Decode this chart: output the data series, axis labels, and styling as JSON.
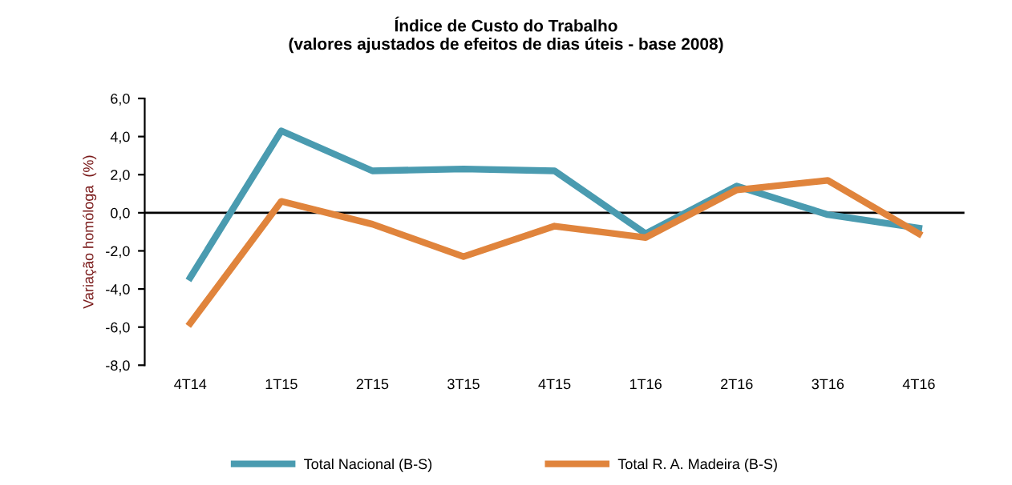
{
  "chart_data": {
    "type": "line",
    "title": "Índice de Custo do Trabalho\n(valores ajustados de efeitos de dias úteis - base 2008)",
    "ylabel": "Variação homóloga  (%)",
    "categories": [
      "4T14",
      "1T15",
      "2T15",
      "3T15",
      "4T15",
      "1T16",
      "2T16",
      "3T16",
      "4T16"
    ],
    "series": [
      {
        "name": "Total Nacional (B-S)",
        "color": "#4a9bb0",
        "values": [
          -3.4,
          4.3,
          2.2,
          2.3,
          2.2,
          -1.1,
          1.4,
          -0.1,
          -0.8
        ]
      },
      {
        "name": "Total R. A. Madeira (B-S)",
        "color": "#e0843c",
        "values": [
          -5.8,
          0.6,
          -0.6,
          -2.3,
          -0.7,
          -1.3,
          1.2,
          1.7,
          -1.1
        ]
      }
    ],
    "ylim": [
      -8,
      6
    ],
    "yticks": [
      {
        "value": -8,
        "label": "-8,0"
      },
      {
        "value": -6,
        "label": "-6,0"
      },
      {
        "value": -4,
        "label": "-4,0"
      },
      {
        "value": -2,
        "label": "-2,0"
      },
      {
        "value": 0,
        "label": "0,0"
      },
      {
        "value": 2,
        "label": "2,0"
      },
      {
        "value": 4,
        "label": "4,0"
      },
      {
        "value": 6,
        "label": "6,0"
      }
    ],
    "ref_lines": [
      {
        "axis": "y",
        "value": 0,
        "label": null,
        "color": "#000000"
      }
    ],
    "grid": false,
    "legend": "bottom",
    "marker": "none",
    "line_style": "solid"
  }
}
